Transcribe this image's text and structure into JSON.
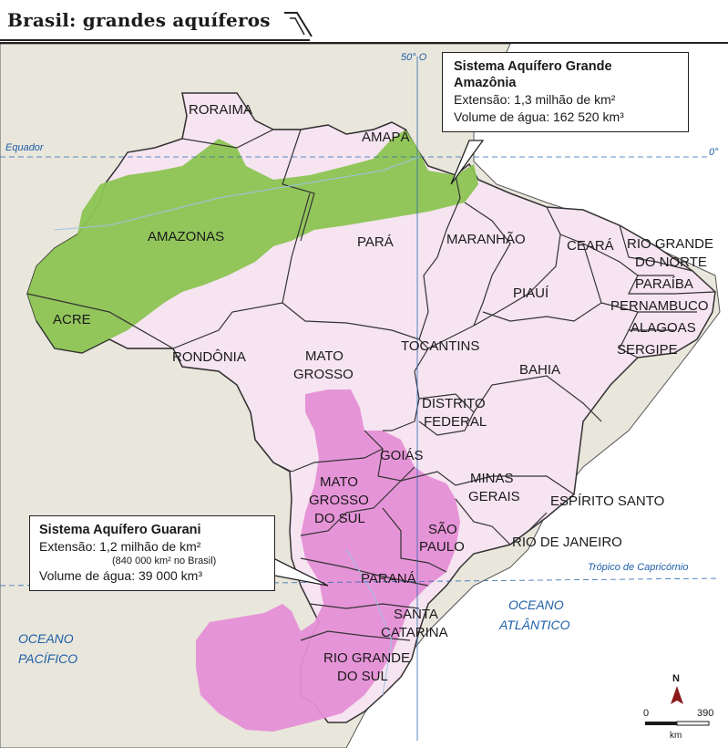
{
  "title": "Brasil: grandes aquíferos",
  "colors": {
    "brazil_fill": "#f6e4f1",
    "amazon_aquifer": "#8cc452",
    "guarani_aquifer": "#e58fd6",
    "land_other": "#e9e6dc",
    "ocean": "#ffffff",
    "border": "#333333",
    "ocean_text": "#1e5fa8"
  },
  "grid_labels": {
    "meridian": "50° O",
    "equator": "Equador",
    "equator_deg": "0°",
    "tropic": "Trópico de Capricórnio"
  },
  "oceans": {
    "atlantic_line1": "OCEANO",
    "atlantic_line2": "ATLÂNTICO",
    "pacific_line1": "OCEANO",
    "pacific_line2": "PACÍFICO"
  },
  "states": {
    "roraima": "RORAIMA",
    "amapa": "AMAPÁ",
    "amazonas": "AMAZONAS",
    "para": "PARÁ",
    "maranhao": "MARANHÃO",
    "ceara": "CEARÁ",
    "rgn_1": "RIO GRANDE",
    "rgn_2": "DO NORTE",
    "paraiba": "PARAÍBA",
    "piaui": "PIAUÍ",
    "pernambuco": "PERNAMBUCO",
    "alagoas": "ALAGOAS",
    "sergipe": "SERGIPE",
    "acre": "ACRE",
    "rondonia": "RONDÔNIA",
    "mt_1": "MATO",
    "mt_2": "GROSSO",
    "tocantins": "TOCANTINS",
    "bahia": "BAHIA",
    "df_1": "DISTRITO",
    "df_2": "FEDERAL",
    "goias": "GOIÁS",
    "ms_1": "MATO",
    "ms_2": "GROSSO",
    "ms_3": "DO SUL",
    "mg_1": "MINAS",
    "mg_2": "GERAIS",
    "es": "ESPÍRITO SANTO",
    "sp_1": "SÃO",
    "sp_2": "PAULO",
    "rj": "RIO DE JANEIRO",
    "parana": "PARANÁ",
    "sc_1": "SANTA",
    "sc_2": "CATARINA",
    "rs_1": "RIO GRANDE",
    "rs_2": "DO SUL"
  },
  "amazonia_box": {
    "title_1": "Sistema Aquífero Grande",
    "title_2": "Amazônia",
    "extension": "Extensão: 1,3 milhão de km²",
    "volume": "Volume de água: 162 520 km³"
  },
  "guarani_box": {
    "title": "Sistema Aquífero Guarani",
    "extension": "Extensão: 1,2 milhão de km²",
    "note": "(840 000 km² no Brasil)",
    "volume": "Volume de água: 39 000 km³"
  },
  "scale": {
    "north": "N",
    "zero": "0",
    "max": "390",
    "unit": "km"
  }
}
